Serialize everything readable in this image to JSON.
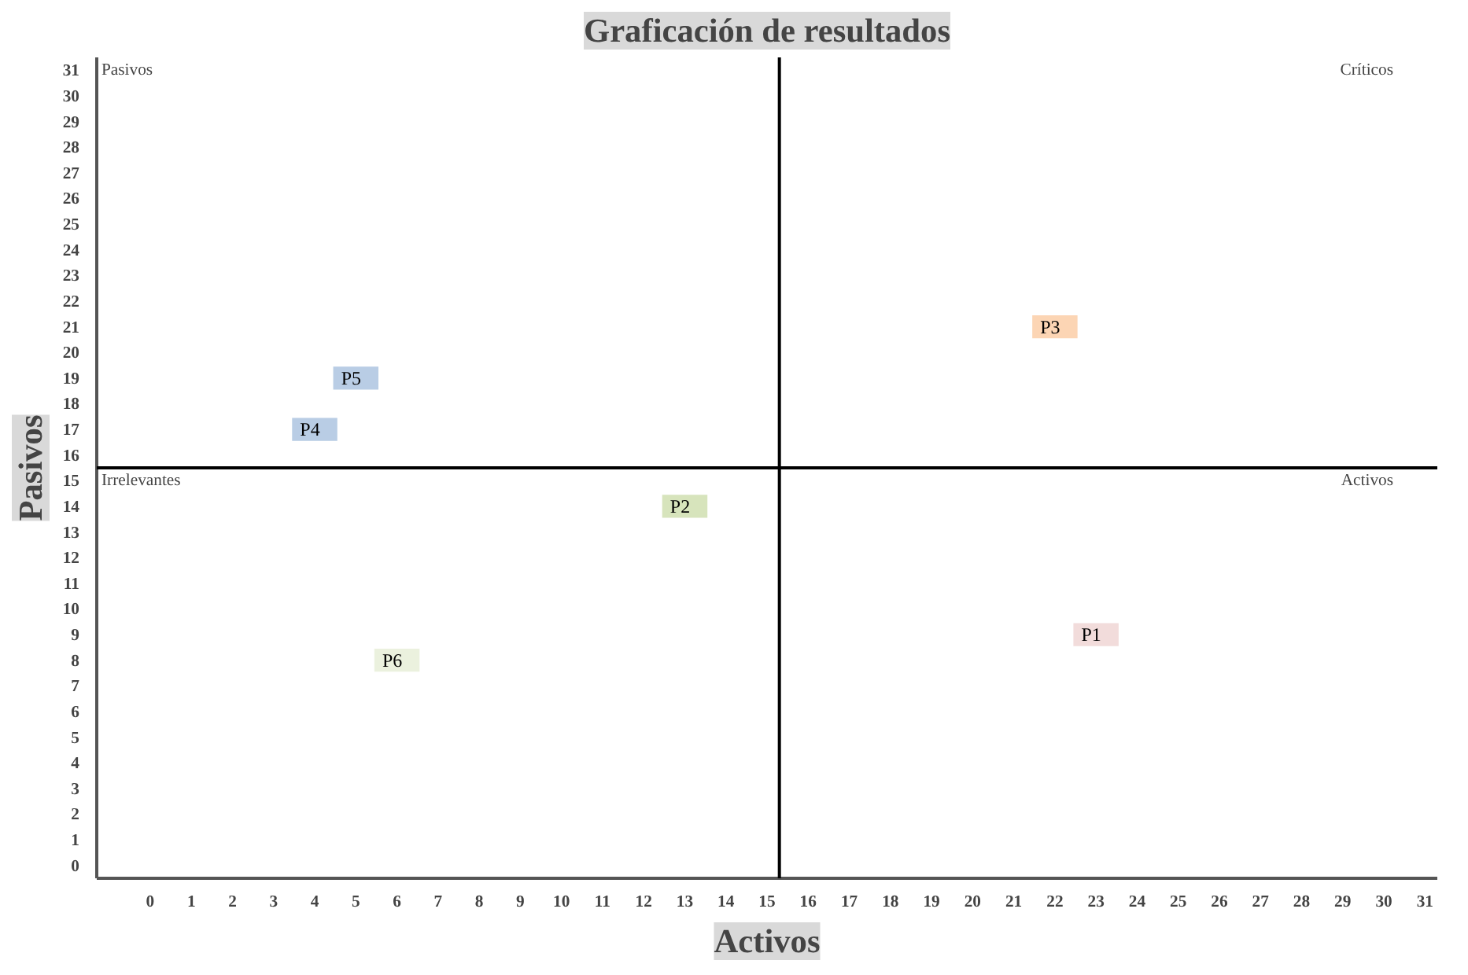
{
  "chart_data": {
    "type": "scatter",
    "title": "Graficación de resultados",
    "xlabel": "Activos",
    "ylabel": "Pasivos",
    "xlim": [
      -1.3,
      31.3
    ],
    "ylim": [
      -0.5,
      31.5
    ],
    "xticks": [
      0,
      1,
      2,
      3,
      4,
      5,
      6,
      7,
      8,
      9,
      10,
      11,
      12,
      13,
      14,
      15,
      16,
      17,
      18,
      19,
      20,
      21,
      22,
      23,
      24,
      25,
      26,
      27,
      28,
      29,
      30,
      31
    ],
    "yticks": [
      0,
      1,
      2,
      3,
      4,
      5,
      6,
      7,
      8,
      9,
      10,
      11,
      12,
      13,
      14,
      15,
      16,
      17,
      18,
      19,
      20,
      21,
      22,
      23,
      24,
      25,
      26,
      27,
      28,
      29,
      30,
      31
    ],
    "grid": false,
    "legend": false,
    "marker": "square",
    "series": [
      {
        "name": "P1",
        "color": "#f2dcdb",
        "x": [
          23
        ],
        "values": [
          9
        ]
      },
      {
        "name": "P2",
        "color": "#d7e4bc",
        "x": [
          13
        ],
        "values": [
          14
        ]
      },
      {
        "name": "P3",
        "color": "#fcd5b4",
        "x": [
          22
        ],
        "values": [
          21
        ]
      },
      {
        "name": "P4",
        "color": "#b9cde5",
        "x": [
          4
        ],
        "values": [
          17
        ]
      },
      {
        "name": "P5",
        "color": "#b9cde5",
        "x": [
          5
        ],
        "values": [
          19
        ]
      },
      {
        "name": "P6",
        "color": "#ebf1de",
        "x": [
          6
        ],
        "values": [
          8
        ]
      }
    ],
    "ref_lines": [
      {
        "axis": "x",
        "value": 15.3,
        "color": "#000000"
      },
      {
        "axis": "y",
        "value": 15.5,
        "color": "#000000"
      }
    ],
    "annotations": [
      "Pasivos",
      "Críticos",
      "Irrelevantes",
      "Activos"
    ]
  }
}
